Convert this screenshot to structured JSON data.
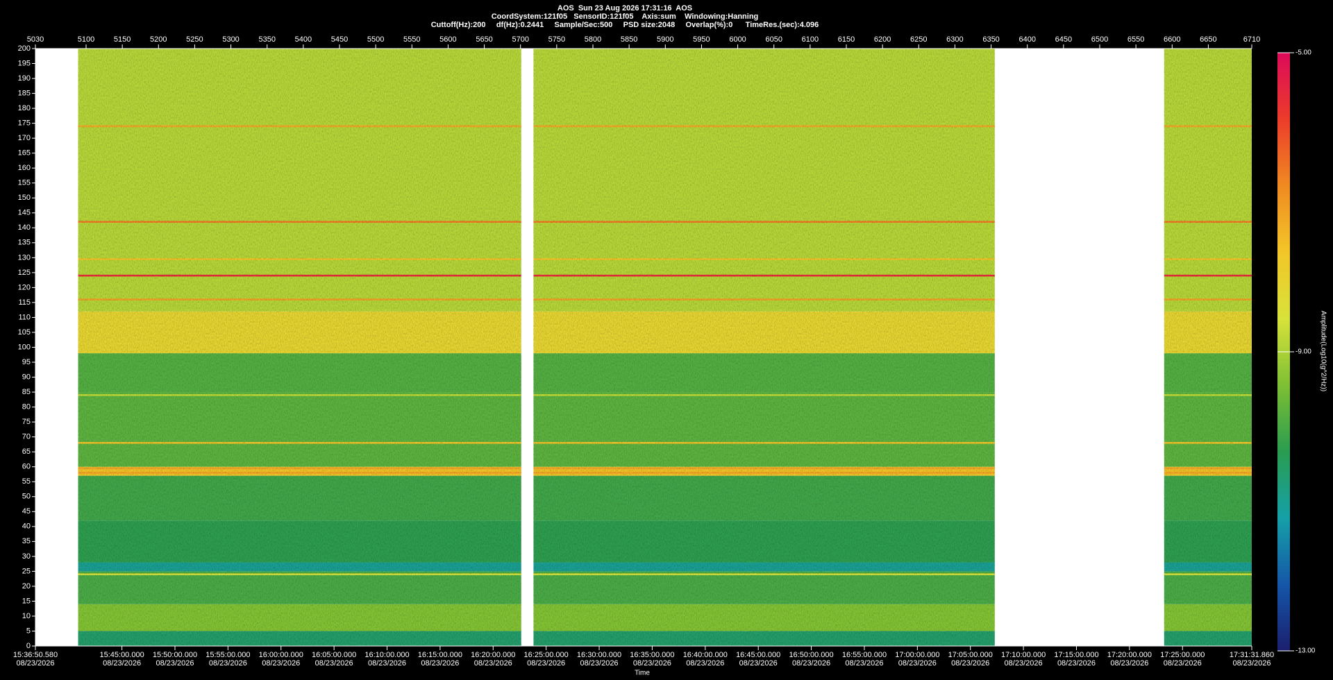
{
  "chart_data": {
    "type": "spectrogram",
    "title": "AOS  Sun 23 Aug 2026 17:31:16  AOS",
    "subtitle": "CoordSystem:121f05   SensorID:121f05    Axis:sum    Windowing:Hanning",
    "info": "Cuttoff(Hz):200     df(Hz):0.2441     Sample/Sec:500     PSD size:2048     Overlap(%):0      TimeRes.(sec):4.096",
    "xlabel": "Time",
    "colorbar_label": "Amplitude(Log10(g^2/Hz))",
    "xlim": [
      5030,
      6710
    ],
    "xticks": [
      5030,
      5100,
      5150,
      5200,
      5250,
      5300,
      5350,
      5400,
      5450,
      5500,
      5550,
      5600,
      5650,
      5700,
      5750,
      5800,
      5850,
      5900,
      5950,
      6000,
      6050,
      6100,
      6150,
      6200,
      6250,
      6300,
      6350,
      6400,
      6450,
      6500,
      6550,
      6600,
      6650,
      6710
    ],
    "time_ticks": [
      {
        "value": 5030,
        "label": "15:36:50.580",
        "date": "08/23/2026"
      },
      {
        "value": 5149.49,
        "label": "15:45:00.000",
        "date": "08/23/2026"
      },
      {
        "value": 5222.73,
        "label": "15:50:00.000",
        "date": "08/23/2026"
      },
      {
        "value": 5295.97,
        "label": "15:55:00.000",
        "date": "08/23/2026"
      },
      {
        "value": 5369.22,
        "label": "16:00:00.000",
        "date": "08/23/2026"
      },
      {
        "value": 5442.46,
        "label": "16:05:00.000",
        "date": "08/23/2026"
      },
      {
        "value": 5515.7,
        "label": "16:10:00.000",
        "date": "08/23/2026"
      },
      {
        "value": 5588.94,
        "label": "16:15:00.000",
        "date": "08/23/2026"
      },
      {
        "value": 5662.19,
        "label": "16:20:00.000",
        "date": "08/23/2026"
      },
      {
        "value": 5735.43,
        "label": "16:25:00.000",
        "date": "08/23/2026"
      },
      {
        "value": 5808.67,
        "label": "16:30:00.000",
        "date": "08/23/2026"
      },
      {
        "value": 5881.91,
        "label": "16:35:00.000",
        "date": "08/23/2026"
      },
      {
        "value": 5955.16,
        "label": "16:40:00.000",
        "date": "08/23/2026"
      },
      {
        "value": 6028.4,
        "label": "16:45:00.000",
        "date": "08/23/2026"
      },
      {
        "value": 6101.64,
        "label": "16:50:00.000",
        "date": "08/23/2026"
      },
      {
        "value": 6174.88,
        "label": "16:55:00.000",
        "date": "08/23/2026"
      },
      {
        "value": 6248.13,
        "label": "17:00:00.000",
        "date": "08/23/2026"
      },
      {
        "value": 6321.37,
        "label": "17:05:00.000",
        "date": "08/23/2026"
      },
      {
        "value": 6394.61,
        "label": "17:10:00.000",
        "date": "08/23/2026"
      },
      {
        "value": 6467.85,
        "label": "17:15:00.000",
        "date": "08/23/2026"
      },
      {
        "value": 6541.1,
        "label": "17:20:00.000",
        "date": "08/23/2026"
      },
      {
        "value": 6614.34,
        "label": "17:25:00.000",
        "date": "08/23/2026"
      },
      {
        "value": 6710,
        "label": "17:31:31.860",
        "date": "08/23/2026"
      }
    ],
    "ylim": [
      0,
      200
    ],
    "yticks": [
      0,
      5,
      10,
      15,
      20,
      25,
      30,
      35,
      40,
      45,
      50,
      55,
      60,
      65,
      70,
      75,
      80,
      85,
      90,
      95,
      100,
      105,
      110,
      115,
      120,
      125,
      130,
      135,
      140,
      145,
      150,
      155,
      160,
      165,
      170,
      175,
      180,
      185,
      190,
      195,
      200
    ],
    "zlim": [
      -13,
      -5
    ],
    "zticks": [
      {
        "value": -5,
        "label": "-5.00"
      },
      {
        "value": -9,
        "label": "-9.00"
      },
      {
        "value": -13,
        "label": "-13.00"
      }
    ],
    "colorscale": [
      "#1b1f6e",
      "#1556a8",
      "#15a0a8",
      "#2a9c50",
      "#7ec034",
      "#d8e23a",
      "#f2c628",
      "#f08a22",
      "#ec3c2a",
      "#dc0a5a"
    ],
    "segments": [
      [
        5089,
        5701
      ],
      [
        5718,
        6355
      ],
      [
        6589,
        6710
      ]
    ],
    "bands": {
      "edges": [
        0,
        5,
        14,
        25,
        28,
        42,
        57,
        60,
        85,
        98,
        112,
        200
      ],
      "values": [
        -10.6,
        -9.4,
        -10.0,
        -11.0,
        -10.3,
        -10.1,
        -7.6,
        -9.8,
        -9.9,
        -8.1,
        -8.9
      ]
    },
    "lines": {
      "freq": [
        24,
        58,
        59.5,
        68,
        84,
        116,
        124,
        129.5,
        142,
        174
      ],
      "values": [
        -8.6,
        -7.2,
        -7.2,
        -7.6,
        -8.8,
        -7.1,
        -5.6,
        -7.6,
        -6.6,
        -7.2
      ]
    }
  }
}
